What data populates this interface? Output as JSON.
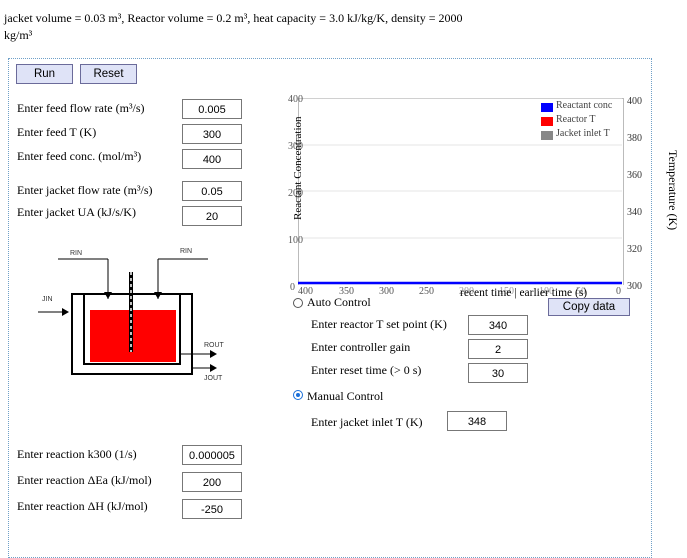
{
  "header": {
    "line1": "jacket volume = 0.03 m³, Reactor volume = 0.2 m³, heat capacity = 3.0 kJ/kg/K, density = 2000",
    "line2": "kg/m³"
  },
  "toolbar": {
    "run_label": "Run",
    "reset_label": "Reset"
  },
  "inputs": {
    "feed_flow": {
      "label": "Enter feed flow rate (m³/s)",
      "value": "0.005"
    },
    "feed_T": {
      "label": "Enter feed T (K)",
      "value": "300"
    },
    "feed_conc": {
      "label": "Enter feed conc. (mol/m³)",
      "value": "400"
    },
    "jacket_flow": {
      "label": "Enter jacket flow rate (m³/s)",
      "value": "0.05"
    },
    "jacket_UA": {
      "label": "Enter jacket UA (kJ/s/K)",
      "value": "20"
    },
    "k300": {
      "label": "Enter reaction k300 (1/s)",
      "value": "0.000005"
    },
    "Ea": {
      "label": "Enter reaction ΔEa (kJ/mol)",
      "value": "200"
    },
    "dH": {
      "label": "Enter reaction ΔH (kJ/mol)",
      "value": "-250"
    }
  },
  "diagram": {
    "rin_left": "RIN",
    "rin_right": "RIN",
    "jin": "JIN",
    "rout": "ROUT",
    "jout": "JOUT"
  },
  "chart_data": {
    "type": "line",
    "ylabel_left": "Reactant Concentration",
    "ylabel_right": "Temperature (K)",
    "xlabel": "recent time | earlier time (s)",
    "x_ticks": [
      "400",
      "350",
      "300",
      "250",
      "200",
      "150",
      "100",
      "50",
      "0"
    ],
    "y_left_ticks": [
      "0",
      "100",
      "200",
      "300",
      "400"
    ],
    "y_right_ticks": [
      "300",
      "320",
      "340",
      "360",
      "380",
      "400"
    ],
    "ylim_left": [
      0,
      400
    ],
    "ylim_right": [
      300,
      400
    ],
    "grid": true,
    "legend_position": "top-right",
    "legend": [
      "Reactant conc",
      "Reactor T",
      "Jacket inlet T"
    ],
    "colors": {
      "conc": "#0000ff",
      "reactorT": "#ff0000",
      "jacketT": "#888888"
    }
  },
  "copy_label": "Copy data",
  "control": {
    "auto_label": "Auto Control",
    "setpoint": {
      "label": "Enter reactor T set point (K)",
      "value": "340"
    },
    "gain": {
      "label": "Enter controller gain",
      "value": "2"
    },
    "reset": {
      "label": "Enter reset time (> 0 s)",
      "value": "30"
    },
    "manual_label": "Manual Control",
    "jacket_inlet": {
      "label": "Enter jacket inlet T (K)",
      "value": "348"
    }
  }
}
